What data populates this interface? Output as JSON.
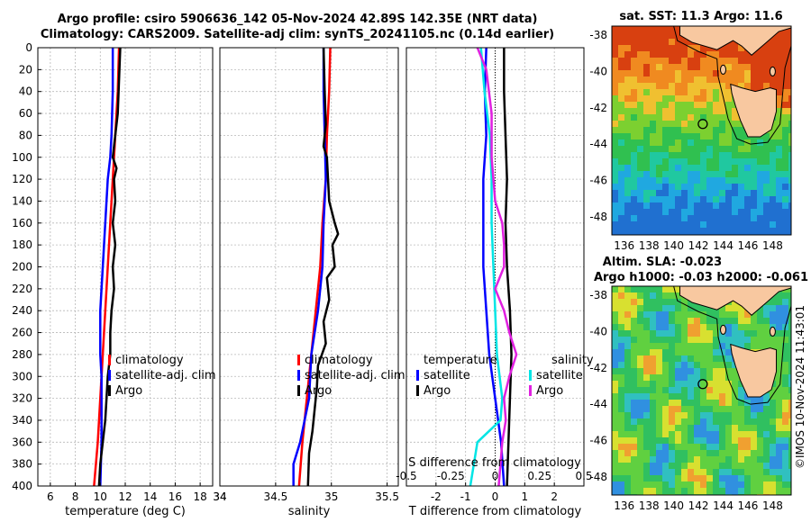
{
  "header": {
    "title_line1": "Argo profile: csiro 5906636_142 05-Nov-2024 42.89S 142.35E (NRT data)",
    "title_line2": "Climatology: CARS2009. Satellite-adj clim: synTS_20241105.nc (0.14d earlier)"
  },
  "colors": {
    "climatology": "#ff0000",
    "satellite": "#0000ff",
    "argo": "#000000",
    "sat_salinity": "#00e5e5",
    "argo_salinity": "#e020e0",
    "land": "#f8c8a0"
  },
  "chart_data": [
    {
      "type": "line",
      "id": "temperature",
      "xlabel": "temperature (deg C)",
      "ylabel": "",
      "xlim": [
        5,
        19
      ],
      "ylim": [
        400,
        0
      ],
      "xticks": [
        "6",
        "8",
        "10",
        "12",
        "14",
        "16",
        "18"
      ],
      "xtick_values": [
        6,
        8,
        10,
        12,
        14,
        16,
        18
      ],
      "yticks": [
        "0",
        "20",
        "40",
        "60",
        "80",
        "100",
        "120",
        "140",
        "160",
        "180",
        "200",
        "220",
        "240",
        "260",
        "280",
        "300",
        "320",
        "340",
        "360",
        "380",
        "400"
      ],
      "ytick_values": [
        0,
        20,
        40,
        60,
        80,
        100,
        120,
        140,
        160,
        180,
        200,
        220,
        240,
        260,
        280,
        300,
        320,
        340,
        360,
        380,
        400
      ],
      "grid": true,
      "legend": [
        "climatology",
        "satellite-adj. clim",
        "Argo"
      ],
      "series": [
        {
          "name": "climatology",
          "color": "#ff0000",
          "width": 2.5,
          "depth": [
            0,
            40,
            80,
            120,
            160,
            200,
            240,
            280,
            320,
            360,
            400
          ],
          "values": [
            11.5,
            11.4,
            11.2,
            11.0,
            10.8,
            10.6,
            10.4,
            10.2,
            10.0,
            9.8,
            9.5
          ]
        },
        {
          "name": "satellite-adj. clim",
          "color": "#0000ff",
          "width": 2.5,
          "depth": [
            0,
            40,
            80,
            100,
            120,
            160,
            200,
            240,
            280,
            300,
            320,
            360,
            400
          ],
          "values": [
            11.0,
            11.0,
            10.9,
            10.8,
            10.6,
            10.4,
            10.2,
            10.0,
            10.0,
            10.1,
            10.1,
            10.1,
            10.0
          ]
        },
        {
          "name": "Argo",
          "color": "#000000",
          "width": 2.5,
          "depth": [
            0,
            30,
            60,
            80,
            100,
            110,
            120,
            140,
            160,
            180,
            200,
            220,
            240,
            260,
            280,
            300,
            320,
            340,
            360,
            380,
            400
          ],
          "values": [
            11.6,
            11.5,
            11.4,
            11.2,
            11.0,
            11.3,
            11.1,
            11.2,
            11.0,
            11.2,
            11.0,
            11.1,
            10.9,
            10.8,
            10.8,
            10.6,
            10.5,
            10.4,
            10.2,
            10.0,
            9.9
          ]
        }
      ]
    },
    {
      "type": "line",
      "id": "salinity",
      "xlabel": "salinity",
      "xlim": [
        34,
        35.6
      ],
      "ylim": [
        400,
        0
      ],
      "xticks": [
        "34",
        "34.5",
        "35",
        "35.5"
      ],
      "xtick_values": [
        34,
        34.5,
        35,
        35.5
      ],
      "grid": true,
      "legend": [
        "climatology",
        "satellite-adj. clim",
        "Argo"
      ],
      "series": [
        {
          "name": "climatology",
          "color": "#ff0000",
          "width": 2.5,
          "depth": [
            0,
            40,
            80,
            120,
            160,
            200,
            240,
            280,
            320,
            360,
            400
          ],
          "values": [
            34.99,
            34.98,
            34.96,
            34.95,
            34.92,
            34.9,
            34.86,
            34.82,
            34.78,
            34.74,
            34.71
          ]
        },
        {
          "name": "satellite-adj. clim",
          "color": "#0000ff",
          "width": 2.5,
          "depth": [
            0,
            40,
            80,
            120,
            160,
            200,
            240,
            280,
            320,
            360,
            380,
            400
          ],
          "values": [
            34.93,
            34.93,
            34.94,
            34.95,
            34.93,
            34.92,
            34.88,
            34.82,
            34.8,
            34.72,
            34.66,
            34.66
          ]
        },
        {
          "name": "Argo",
          "color": "#000000",
          "width": 2.5,
          "depth": [
            0,
            40,
            70,
            90,
            100,
            120,
            140,
            160,
            170,
            180,
            200,
            210,
            230,
            250,
            270,
            290,
            310,
            330,
            350,
            370,
            400
          ],
          "values": [
            34.93,
            34.94,
            34.95,
            34.93,
            34.96,
            34.97,
            34.98,
            35.03,
            35.06,
            35.01,
            35.03,
            34.96,
            34.98,
            34.93,
            34.95,
            34.88,
            34.87,
            34.85,
            34.83,
            34.8,
            34.79
          ]
        }
      ]
    },
    {
      "type": "line",
      "id": "difference",
      "xlabel": "T difference from climatology",
      "xlim": [
        -3,
        3
      ],
      "ylim": [
        400,
        0
      ],
      "xticks": [
        "-2",
        "-1",
        "0",
        "1",
        "2"
      ],
      "xtick_values": [
        -2,
        -1,
        0,
        1,
        2
      ],
      "top_axis_label": "S difference from climatology",
      "top_ticks": [
        "-0.5",
        "-0.25",
        "0",
        "0.25",
        "0.5"
      ],
      "top_tick_values": [
        -0.5,
        -0.25,
        0,
        0.25,
        0.5
      ],
      "legend_titles": [
        "temperature",
        "salinity"
      ],
      "legend": [
        "satellite",
        "Argo",
        "satellite",
        "Argo"
      ],
      "grid": true,
      "series": [
        {
          "name": "temperature satellite",
          "color": "#0000ff",
          "width": 2.5,
          "depth": [
            0,
            40,
            80,
            120,
            160,
            200,
            240,
            280,
            320,
            360,
            400
          ],
          "values": [
            -0.3,
            -0.35,
            -0.3,
            -0.4,
            -0.4,
            -0.4,
            -0.3,
            -0.2,
            0.0,
            0.2,
            0.3
          ]
        },
        {
          "name": "temperature Argo",
          "color": "#000000",
          "width": 2.5,
          "depth": [
            0,
            40,
            80,
            120,
            160,
            200,
            240,
            280,
            320,
            360,
            400
          ],
          "values": [
            0.3,
            0.3,
            0.35,
            0.4,
            0.35,
            0.4,
            0.5,
            0.55,
            0.5,
            0.45,
            0.4
          ]
        },
        {
          "name": "salinity satellite",
          "color": "#00e5e5",
          "width": 2.5,
          "depth": [
            0,
            40,
            80,
            120,
            160,
            200,
            240,
            280,
            320,
            340,
            360,
            380,
            400
          ],
          "values": [
            -0.08,
            -0.06,
            -0.03,
            -0.02,
            -0.02,
            -0.01,
            0.0,
            0.01,
            0.04,
            0.03,
            -0.1,
            -0.12,
            -0.14
          ]
        },
        {
          "name": "salinity Argo",
          "color": "#e020e0",
          "width": 2.5,
          "depth": [
            0,
            20,
            60,
            100,
            140,
            160,
            180,
            200,
            220,
            240,
            260,
            270,
            280,
            300,
            320,
            340,
            360,
            380,
            400
          ],
          "values": [
            -0.1,
            -0.05,
            -0.02,
            -0.02,
            0.0,
            0.04,
            0.05,
            0.05,
            0.0,
            0.05,
            0.08,
            0.1,
            0.12,
            0.08,
            0.05,
            0.06,
            0.04,
            0.03,
            0.02
          ]
        }
      ]
    },
    {
      "type": "heatmap",
      "id": "sst_map",
      "title": "sat. SST: 11.3 Argo: 11.6",
      "xlim": [
        135,
        149.5
      ],
      "ylim": [
        -49,
        -37.5
      ],
      "xticks": [
        "136",
        "138",
        "140",
        "142",
        "144",
        "146",
        "148"
      ],
      "xtick_values": [
        136,
        138,
        140,
        142,
        144,
        146,
        148
      ],
      "yticks": [
        "-38",
        "-40",
        "-42",
        "-44",
        "-46",
        "-48"
      ],
      "ytick_values": [
        -38,
        -40,
        -42,
        -44,
        -46,
        -48
      ],
      "marker": {
        "lon": 142.35,
        "lat": -42.89
      }
    },
    {
      "type": "heatmap",
      "id": "sla_map",
      "title": "Altim. SLA: -0.023",
      "subtitle": "Argo h1000: -0.03 h2000: -0.061",
      "xlim": [
        135,
        149.5
      ],
      "ylim": [
        -49,
        -37.5
      ],
      "xticks": [
        "136",
        "138",
        "140",
        "142",
        "144",
        "146",
        "148"
      ],
      "xtick_values": [
        136,
        138,
        140,
        142,
        144,
        146,
        148
      ],
      "yticks": [
        "-38",
        "-40",
        "-42",
        "-44",
        "-46",
        "-48"
      ],
      "ytick_values": [
        -38,
        -40,
        -42,
        -44,
        -46,
        -48
      ],
      "marker": {
        "lon": 142.35,
        "lat": -42.89
      }
    }
  ],
  "footer": {
    "credit": "©IMOS 10-Nov-2024 11:43:01"
  }
}
